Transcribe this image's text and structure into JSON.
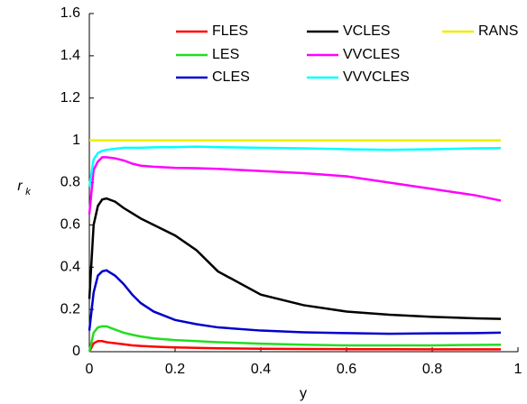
{
  "chart_data": {
    "type": "line",
    "xlabel": "y",
    "ylabel": "r",
    "ylabel_subscript": "k",
    "x": [
      0,
      0.01,
      0.02,
      0.03,
      0.04,
      0.06,
      0.08,
      0.1,
      0.12,
      0.15,
      0.2,
      0.25,
      0.3,
      0.4,
      0.5,
      0.6,
      0.7,
      0.8,
      0.9,
      0.96
    ],
    "series": [
      {
        "name": "FLES",
        "color": "#ff0000",
        "values": [
          0,
          0.04,
          0.05,
          0.05,
          0.045,
          0.04,
          0.035,
          0.03,
          0.027,
          0.024,
          0.02,
          0.018,
          0.016,
          0.014,
          0.013,
          0.012,
          0.012,
          0.011,
          0.011,
          0.011
        ]
      },
      {
        "name": "LES",
        "color": "#22dd22",
        "values": [
          0,
          0.09,
          0.115,
          0.12,
          0.12,
          0.105,
          0.09,
          0.08,
          0.072,
          0.063,
          0.055,
          0.05,
          0.045,
          0.038,
          0.033,
          0.03,
          0.03,
          0.03,
          0.032,
          0.033
        ]
      },
      {
        "name": "CLES",
        "color": "#0000cc",
        "values": [
          0.1,
          0.28,
          0.36,
          0.38,
          0.385,
          0.36,
          0.32,
          0.27,
          0.23,
          0.19,
          0.15,
          0.13,
          0.115,
          0.1,
          0.092,
          0.088,
          0.085,
          0.087,
          0.088,
          0.09
        ]
      },
      {
        "name": "VCLES",
        "color": "#000000",
        "values": [
          0.25,
          0.6,
          0.69,
          0.72,
          0.725,
          0.71,
          0.68,
          0.655,
          0.63,
          0.6,
          0.55,
          0.48,
          0.38,
          0.27,
          0.22,
          0.19,
          0.175,
          0.165,
          0.158,
          0.155
        ]
      },
      {
        "name": "VVCLES",
        "color": "#ff00ff",
        "values": [
          0.65,
          0.86,
          0.9,
          0.92,
          0.92,
          0.915,
          0.905,
          0.89,
          0.88,
          0.875,
          0.87,
          0.868,
          0.865,
          0.855,
          0.845,
          0.83,
          0.8,
          0.77,
          0.74,
          0.715
        ]
      },
      {
        "name": "VVVCLES",
        "color": "#00ffff",
        "values": [
          0.78,
          0.91,
          0.94,
          0.95,
          0.955,
          0.96,
          0.965,
          0.965,
          0.965,
          0.967,
          0.968,
          0.97,
          0.968,
          0.965,
          0.962,
          0.958,
          0.955,
          0.958,
          0.962,
          0.963
        ]
      },
      {
        "name": "RANS",
        "color": "#eeee00",
        "values": [
          1,
          1,
          1,
          1,
          1,
          1,
          1,
          1,
          1,
          1,
          1,
          1,
          1,
          1,
          1,
          1,
          1,
          1,
          1,
          1
        ]
      }
    ],
    "xlim": [
      0,
      1
    ],
    "ylim": [
      0,
      1.6
    ],
    "xticks": [
      0,
      0.2,
      0.4,
      0.6,
      0.8,
      1
    ],
    "yticks": [
      0,
      0.2,
      0.4,
      0.6,
      0.8,
      1,
      1.2,
      1.4,
      1.6
    ],
    "legend": "top-right"
  }
}
